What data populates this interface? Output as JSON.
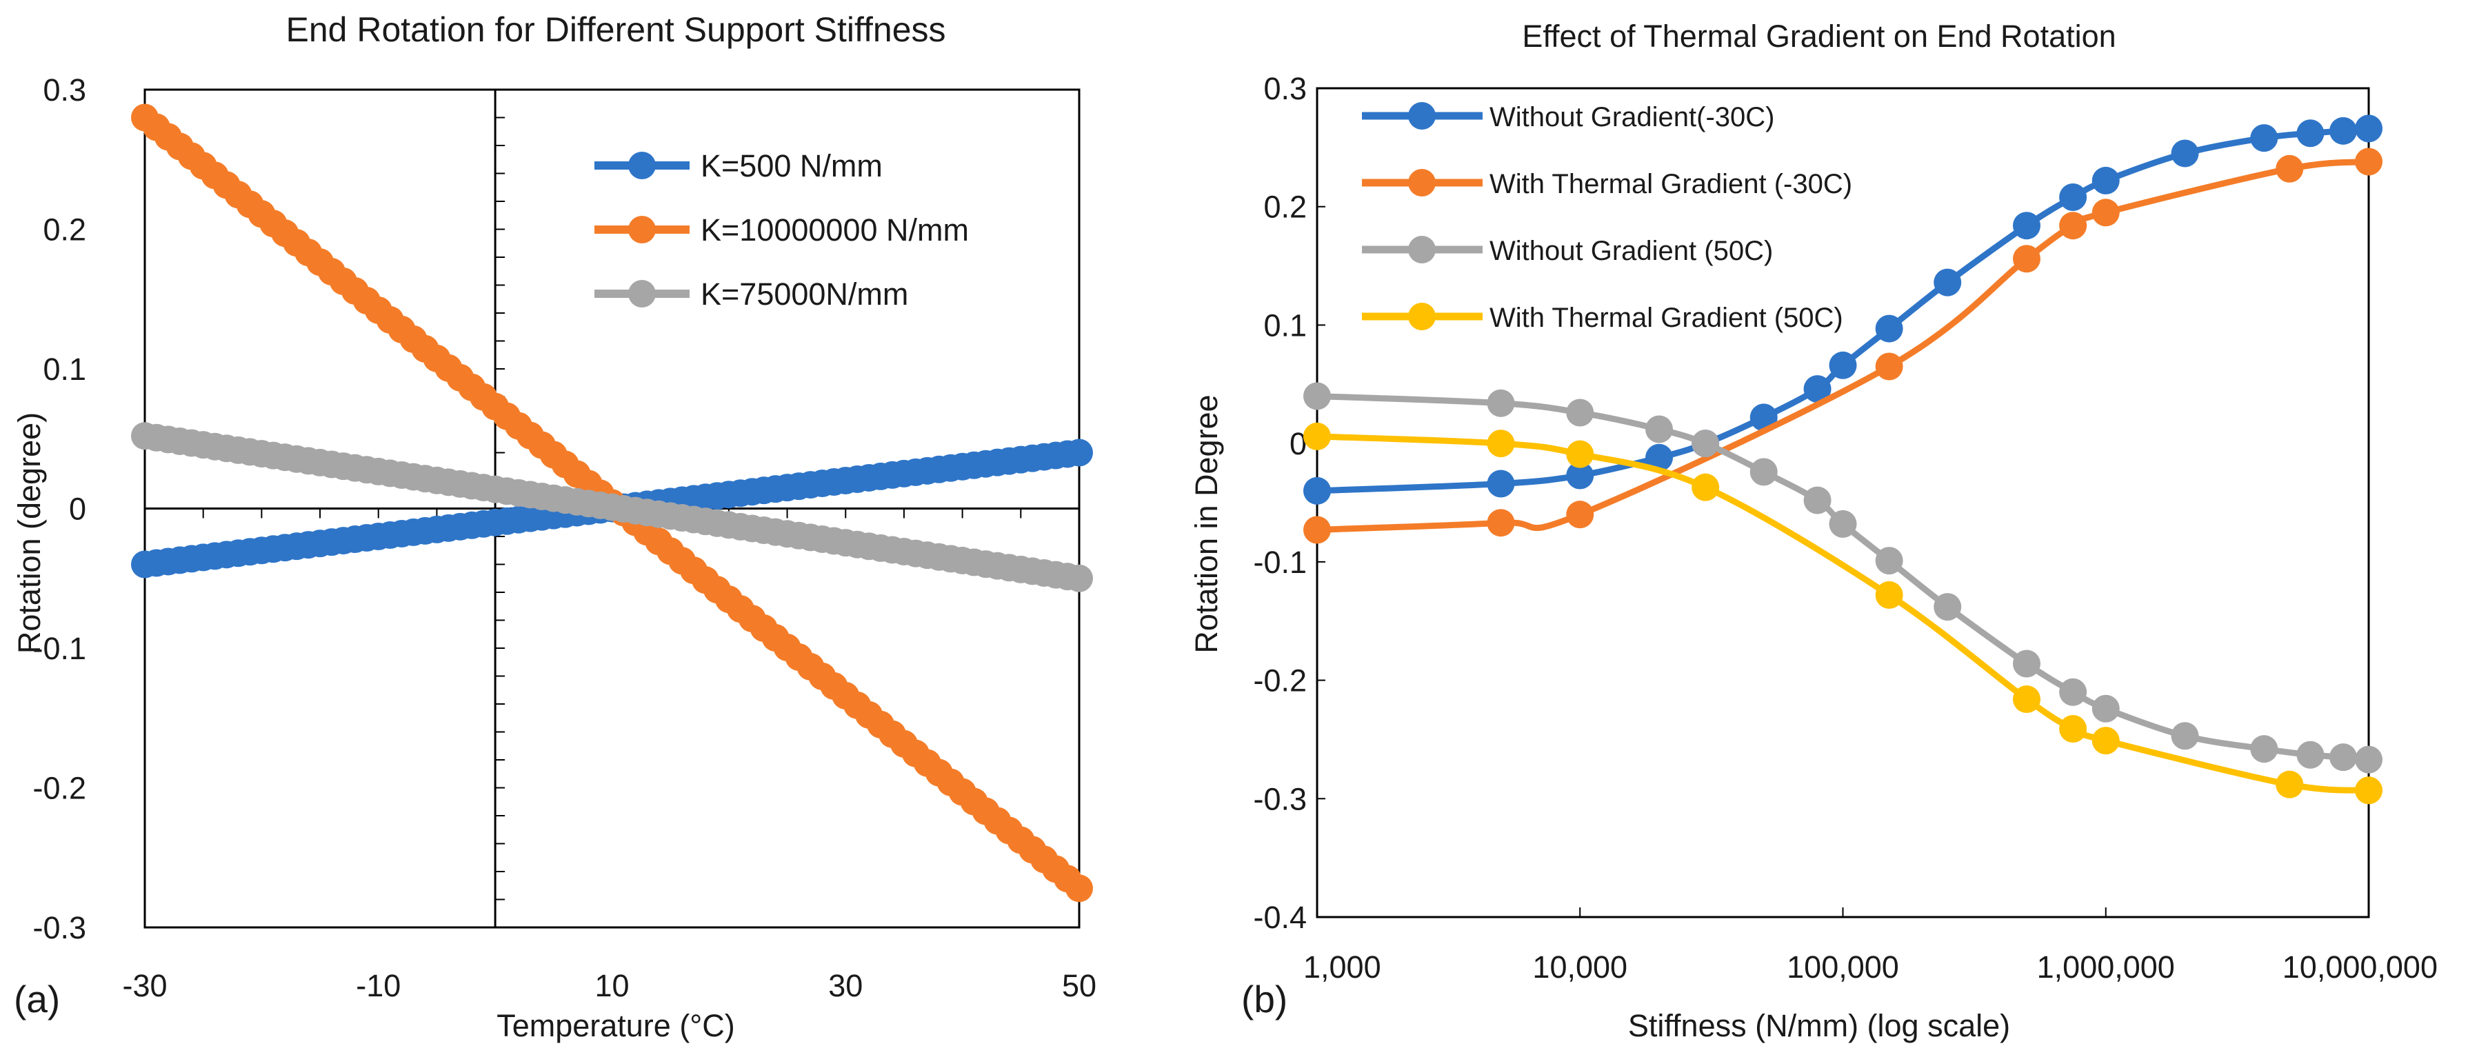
{
  "figure": {
    "panel_a_label": "(a)",
    "panel_b_label": "(b)"
  },
  "chart_data": [
    {
      "id": "a",
      "type": "line",
      "title": "End Rotation for Different Support Stiffness",
      "xlabel": "Temperature (°C)",
      "ylabel": "Rotation (degree)",
      "xlim": [
        -30,
        50
      ],
      "ylim": [
        -0.3,
        0.3
      ],
      "x_ticks": [
        -30,
        -10,
        10,
        30,
        50
      ],
      "x_tick_labels": [
        "-30",
        "-10",
        "10",
        "30",
        "50"
      ],
      "y_ticks": [
        -0.3,
        -0.2,
        -0.1,
        0,
        0.1,
        0.2,
        0.3
      ],
      "y_tick_labels": [
        "-0.3",
        "-0.2",
        "-0.1",
        "0",
        "0.1",
        "0.2",
        "0.3"
      ],
      "legend_position": "top-right",
      "grid": false,
      "series": [
        {
          "name": "K=500 N/mm",
          "color": "#2E75C8",
          "x_start": -30,
          "x_end": 50,
          "x_step": 1,
          "y_start": -0.04,
          "y_end": 0.04
        },
        {
          "name": "K=10000000 N/mm",
          "color": "#F47C28",
          "x_start": -30,
          "x_end": 50,
          "x_step": 1,
          "y_start": 0.28,
          "y_end": -0.272
        },
        {
          "name": "K=75000N/mm",
          "color": "#A6A6A6",
          "x_start": -30,
          "x_end": 50,
          "x_step": 1,
          "y_start": 0.052,
          "y_end": -0.05
        }
      ]
    },
    {
      "id": "b",
      "type": "line",
      "title": "Effect of Thermal Gradient on End Rotation",
      "xlabel": "Stiffness (N/mm) (log scale)",
      "ylabel": "Rotation in Degree",
      "x_scale": "log",
      "xlim": [
        1000,
        10000000
      ],
      "ylim": [
        -0.4,
        0.3
      ],
      "x_ticks": [
        1000,
        10000,
        100000,
        1000000,
        10000000
      ],
      "x_tick_labels": [
        "1,000",
        "10,000",
        "100,000",
        "1,000,000",
        "10,000,000"
      ],
      "y_ticks": [
        -0.4,
        -0.3,
        -0.2,
        -0.1,
        0,
        0.1,
        0.2,
        0.3
      ],
      "y_tick_labels": [
        "-0.4",
        "-0.3",
        "-0.2",
        "-0.1",
        "0",
        "0.1",
        "0.2",
        "0.3"
      ],
      "legend_position": "top-left",
      "grid": false,
      "series": [
        {
          "name": "Without Gradient(-30C)",
          "color": "#2E75C8",
          "x": [
            1000,
            5000,
            10000,
            20000,
            30000,
            50000,
            80000,
            100000,
            150000,
            250000,
            500000,
            750000,
            1000000,
            2000000,
            4000000,
            6000000,
            8000000,
            10000000
          ],
          "y": [
            -0.04,
            -0.034,
            -0.027,
            -0.012,
            0.0,
            0.022,
            0.046,
            0.066,
            0.097,
            0.136,
            0.184,
            0.208,
            0.222,
            0.245,
            0.258,
            0.262,
            0.264,
            0.266
          ]
        },
        {
          "name": "With Thermal Gradient (-30C)",
          "color": "#F47C28",
          "x": [
            1000,
            5000,
            10000,
            150000,
            500000,
            750000,
            1000000,
            5000000,
            10000000
          ],
          "y": [
            -0.073,
            -0.067,
            -0.06,
            0.065,
            0.156,
            0.184,
            0.195,
            0.232,
            0.238
          ]
        },
        {
          "name": "Without Gradient (50C)",
          "color": "#A6A6A6",
          "x": [
            1000,
            5000,
            10000,
            20000,
            30000,
            50000,
            80000,
            100000,
            150000,
            250000,
            500000,
            750000,
            1000000,
            2000000,
            4000000,
            6000000,
            8000000,
            10000000
          ],
          "y": [
            0.04,
            0.034,
            0.026,
            0.012,
            0.0,
            -0.024,
            -0.048,
            -0.068,
            -0.099,
            -0.138,
            -0.186,
            -0.21,
            -0.224,
            -0.247,
            -0.258,
            -0.263,
            -0.265,
            -0.267
          ]
        },
        {
          "name": "With Thermal Gradient (50C)",
          "color": "#FFC000",
          "x": [
            1000,
            5000,
            10000,
            30000,
            150000,
            500000,
            750000,
            1000000,
            5000000,
            10000000
          ],
          "y": [
            0.006,
            0.0,
            -0.009,
            -0.037,
            -0.128,
            -0.216,
            -0.241,
            -0.251,
            -0.288,
            -0.293
          ]
        }
      ]
    }
  ]
}
